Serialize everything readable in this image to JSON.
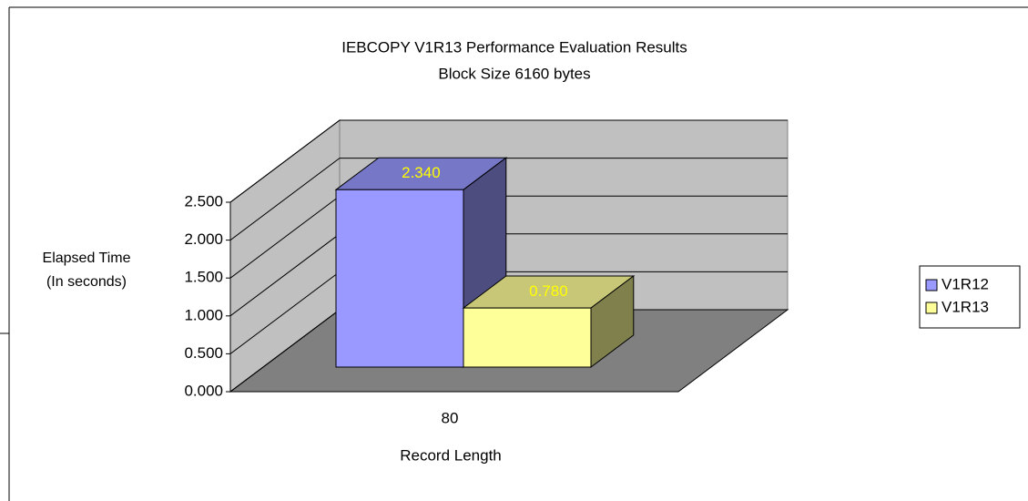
{
  "chart_data": {
    "type": "bar3d",
    "title": "IEBCOPY V1R13 Performance Evaluation Results",
    "subtitle": "Block Size 6160 bytes",
    "ylabel": [
      "Elapsed Time",
      "(In seconds)"
    ],
    "xlabel": "Record Length",
    "categories": [
      "80"
    ],
    "series": [
      {
        "name": "V1R12",
        "color": "#9999ff",
        "values": [
          2.34
        ],
        "value_labels": [
          "2.340"
        ]
      },
      {
        "name": "V1R13",
        "color": "#ffff99",
        "values": [
          0.78
        ],
        "value_labels": [
          "0.780"
        ]
      }
    ],
    "ylim": [
      0,
      2.5
    ],
    "yticks": [
      {
        "value": 0,
        "label": "0.000"
      },
      {
        "value": 0.5,
        "label": "0.500"
      },
      {
        "value": 1,
        "label": "1.000"
      },
      {
        "value": 1.5,
        "label": "1.500"
      },
      {
        "value": 2,
        "label": "2.000"
      },
      {
        "value": 2.5,
        "label": "2.500"
      }
    ],
    "grid": true,
    "legend": "right"
  }
}
